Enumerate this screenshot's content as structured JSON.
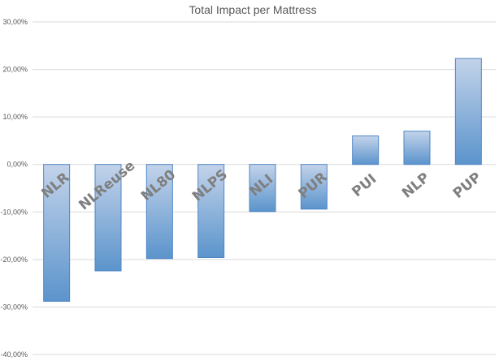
{
  "chart_data": {
    "type": "bar",
    "title": "Total Impact per Mattress",
    "xlabel": "",
    "ylabel": "",
    "categories": [
      "NLR",
      "NLReuse",
      "NL80",
      "NLPS",
      "NLI",
      "PUR",
      "PUI",
      "NLP",
      "PUP"
    ],
    "values": [
      -28.8,
      -22.4,
      -19.8,
      -19.6,
      -9.9,
      -9.4,
      6.0,
      7.0,
      22.3
    ],
    "ylim": [
      -40,
      30
    ],
    "yticks": [
      30,
      20,
      10,
      0,
      -10,
      -20,
      -30,
      -40
    ],
    "ytick_labels": [
      "30,00%",
      "20,00%",
      "10,00%",
      "0,00%",
      "-10,00%",
      "-20,00%",
      "-30,00%",
      "-40,00%"
    ],
    "grid": true,
    "legend": "none",
    "colors": {
      "bar_top": "#c3d3ea",
      "bar_bottom": "#5b94cc",
      "bar_edge": "#4f86c6"
    }
  }
}
